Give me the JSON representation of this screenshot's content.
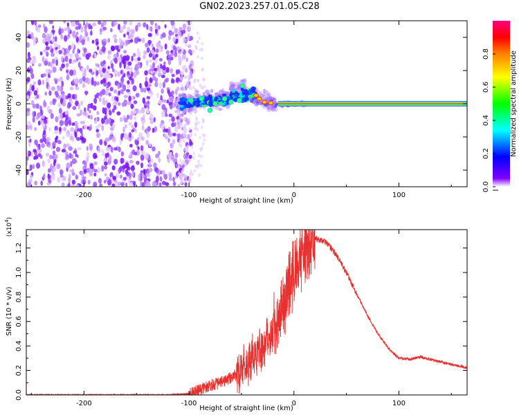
{
  "title": "GN02.2023.257.01.05.C28",
  "chart_data": [
    {
      "type": "heatmap",
      "xlabel": "Height of straight line (km)",
      "ylabel": "Frequency (Hz)",
      "xlim": [
        -255,
        165
      ],
      "ylim": [
        -50,
        50
      ],
      "x_ticks": [
        -200,
        -100,
        0,
        100
      ],
      "y_ticks": [
        -40,
        -20,
        0,
        20,
        40
      ],
      "x_tick_labels": [
        "-200",
        "-100",
        "0",
        "100"
      ],
      "y_tick_labels": [
        "-40",
        "-20",
        "0",
        "20",
        "40"
      ],
      "colorbar": {
        "label": "Normalized spectral amplitude",
        "range": [
          0,
          1
        ],
        "ticks": [
          0.0,
          0.2,
          0.4,
          0.6,
          0.8
        ],
        "tick_labels": [
          "0.0",
          "0.2",
          "0.4",
          "0.6",
          "0.8"
        ],
        "colormap": [
          "#ffffff",
          "#8000ff",
          "#0000ff",
          "#00ffff",
          "#00ff00",
          "#ffff00",
          "#ff8000",
          "#ff0000",
          "#ff0080"
        ]
      },
      "regions": [
        {
          "name": "noise",
          "x_range": [
            -255,
            -105
          ],
          "y_range": [
            -50,
            50
          ],
          "amplitude": 0.1
        },
        {
          "name": "transition",
          "x_range": [
            -110,
            -40
          ],
          "y_range": [
            -8,
            15
          ],
          "amplitude": 0.4
        },
        {
          "name": "carrier",
          "x_range": [
            -40,
            165
          ],
          "frequency": 0,
          "amplitude": 0.95
        }
      ],
      "grid": false
    },
    {
      "type": "line",
      "xlabel": "Height of straight line (km)",
      "ylabel": "SNR (10 * v/v)",
      "multiplier": "(x10^4)",
      "xlim": [
        -255,
        165
      ],
      "ylim": [
        0,
        1.35
      ],
      "x_ticks": [
        -200,
        -100,
        0,
        100
      ],
      "y_ticks": [
        0.0,
        0.2,
        0.4,
        0.6,
        0.8,
        1.0,
        1.2
      ],
      "x_tick_labels": [
        "-200",
        "-100",
        "0",
        "100"
      ],
      "y_tick_labels": [
        "0.0",
        "0.2",
        "0.4",
        "0.6",
        "0.8",
        "1.0",
        "1.2"
      ],
      "color": "#e8312f",
      "x": [
        -255,
        -200,
        -150,
        -120,
        -100,
        -90,
        -80,
        -70,
        -60,
        -50,
        -40,
        -30,
        -20,
        -10,
        0,
        10,
        20,
        30,
        40,
        50,
        60,
        70,
        80,
        90,
        100,
        110,
        120,
        130,
        140,
        150,
        165
      ],
      "y": [
        0.0,
        0.0,
        0.0,
        0.0,
        0.01,
        0.04,
        0.08,
        0.1,
        0.14,
        0.2,
        0.3,
        0.4,
        0.55,
        0.75,
        1.0,
        1.18,
        1.28,
        1.25,
        1.15,
        1.0,
        0.82,
        0.65,
        0.5,
        0.38,
        0.3,
        0.29,
        0.31,
        0.29,
        0.27,
        0.25,
        0.22
      ],
      "grid": false
    }
  ]
}
